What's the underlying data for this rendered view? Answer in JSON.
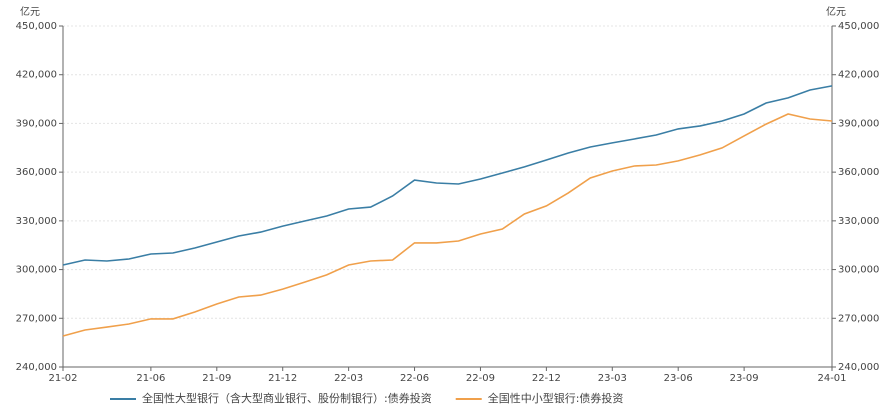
{
  "chart_data": {
    "type": "line",
    "y_label": "亿元",
    "y2_label": "亿元",
    "categories": [
      "21-02",
      null,
      null,
      null,
      "21-06",
      null,
      null,
      "21-09",
      null,
      null,
      "21-12",
      null,
      null,
      "22-03",
      null,
      null,
      "22-06",
      null,
      null,
      "22-09",
      null,
      null,
      "22-12",
      null,
      null,
      "23-03",
      null,
      null,
      "23-06",
      null,
      null,
      "23-09",
      null,
      null,
      null,
      "24-01"
    ],
    "series": [
      {
        "name": "全国性大型银行（含大型商业银行、股份制银行）:债券投资",
        "color": "#3a7ea5",
        "axis": "y",
        "values": [
          302800,
          305900,
          305300,
          306500,
          309600,
          310200,
          313300,
          317000,
          320700,
          323100,
          326800,
          329900,
          333000,
          337300,
          338500,
          345300,
          355100,
          353300,
          352700,
          355800,
          359500,
          363200,
          367500,
          371800,
          375500,
          378000,
          380400,
          382900,
          386600,
          388500,
          391500,
          395800,
          402600,
          405700,
          410600,
          413100
        ]
      },
      {
        "name": "全国性中小型银行:债券投资",
        "color": "#f0a04b",
        "axis": "y2",
        "values": [
          259100,
          262800,
          264600,
          266500,
          269600,
          269600,
          273900,
          278800,
          283100,
          284300,
          288000,
          292300,
          296700,
          302800,
          305300,
          305900,
          316400,
          316400,
          317600,
          321900,
          325000,
          334200,
          339200,
          347200,
          356400,
          360700,
          363800,
          364400,
          366900,
          370600,
          374900,
          382300,
          389600,
          395800,
          392700,
          391500
        ]
      }
    ],
    "ylim": [
      240000,
      450000
    ],
    "yticks": [
      {
        "value": 240000,
        "label": "240,000"
      },
      {
        "value": 270000,
        "label": "270,000"
      },
      {
        "value": 300000,
        "label": "300,000"
      },
      {
        "value": 330000,
        "label": "330,000"
      },
      {
        "value": 360000,
        "label": "360,000"
      },
      {
        "value": 390000,
        "label": "390,000"
      },
      {
        "value": 420000,
        "label": "420,000"
      },
      {
        "value": 450000,
        "label": "450,000"
      }
    ],
    "y2lim": [
      240000,
      450000
    ],
    "y2ticks": [
      {
        "value": 240000,
        "label": "240,000"
      },
      {
        "value": 270000,
        "label": "270,000"
      },
      {
        "value": 300000,
        "label": "300,000"
      },
      {
        "value": 330000,
        "label": "330,000"
      },
      {
        "value": 360000,
        "label": "360,000"
      },
      {
        "value": 390000,
        "label": "390,000"
      },
      {
        "value": 420000,
        "label": "420,000"
      },
      {
        "value": 450000,
        "label": "450,000"
      }
    ],
    "grid": true
  }
}
